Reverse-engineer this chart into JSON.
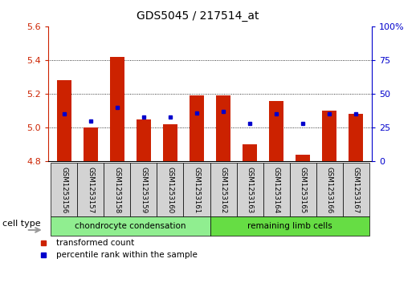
{
  "title": "GDS5045 / 217514_at",
  "samples": [
    "GSM1253156",
    "GSM1253157",
    "GSM1253158",
    "GSM1253159",
    "GSM1253160",
    "GSM1253161",
    "GSM1253162",
    "GSM1253163",
    "GSM1253164",
    "GSM1253165",
    "GSM1253166",
    "GSM1253167"
  ],
  "red_values": [
    5.28,
    5.0,
    5.42,
    5.05,
    5.02,
    5.19,
    5.19,
    4.9,
    5.16,
    4.84,
    5.1,
    5.08
  ],
  "blue_percentile": [
    35,
    30,
    40,
    33,
    33,
    36,
    37,
    28,
    35,
    28,
    35,
    35
  ],
  "ylim_left": [
    4.8,
    5.6
  ],
  "ylim_right": [
    0,
    100
  ],
  "yticks_left": [
    4.8,
    5.0,
    5.2,
    5.4,
    5.6
  ],
  "yticks_right": [
    0,
    25,
    50,
    75,
    100
  ],
  "baseline": 4.8,
  "cell_type_groups": [
    {
      "label": "chondrocyte condensation",
      "start": 0,
      "end": 6,
      "color": "#90EE90"
    },
    {
      "label": "remaining limb cells",
      "start": 6,
      "end": 12,
      "color": "#66DD44"
    }
  ],
  "bar_color": "#CC2200",
  "dot_color": "#0000CC",
  "left_axis_color": "#CC2200",
  "right_axis_color": "#0000CC",
  "cell_type_label": "cell type",
  "legend_items": [
    {
      "label": "transformed count",
      "color": "#CC2200"
    },
    {
      "label": "percentile rank within the sample",
      "color": "#0000CC"
    }
  ],
  "bar_width": 0.55
}
